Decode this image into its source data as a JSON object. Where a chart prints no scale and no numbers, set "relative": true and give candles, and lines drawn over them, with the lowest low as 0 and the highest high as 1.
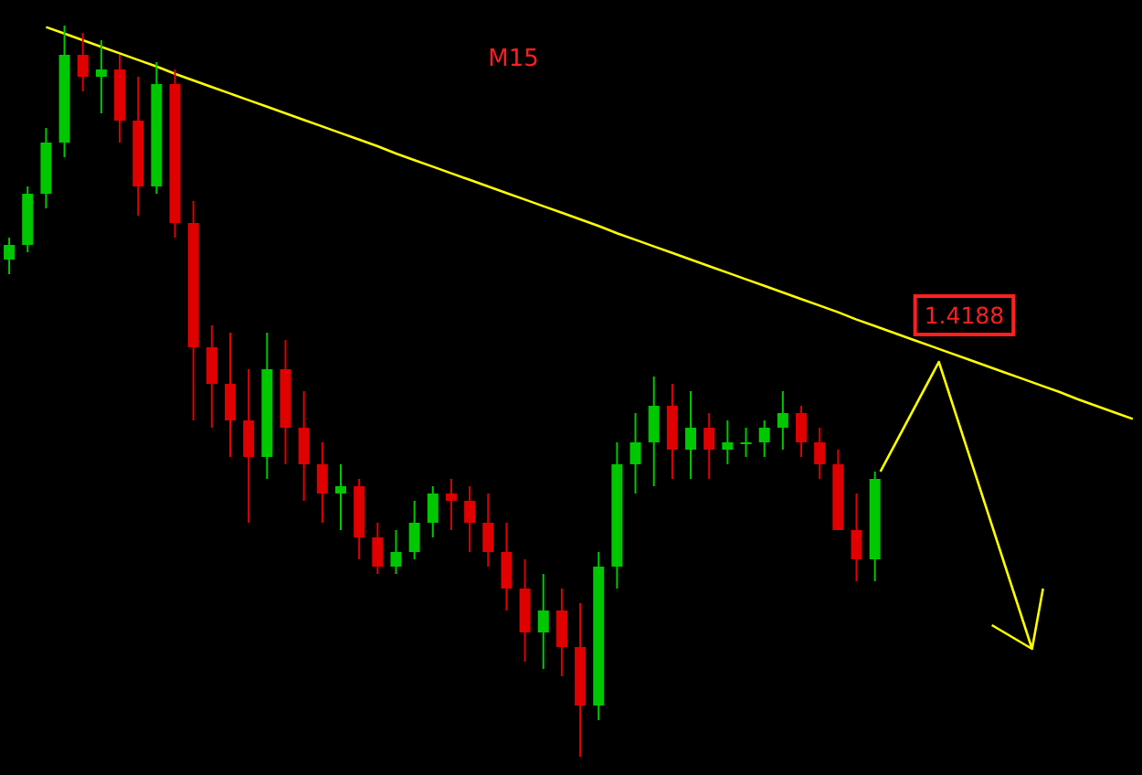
{
  "chart_data": {
    "type": "candlestick",
    "title": "M15",
    "relative": true,
    "categories": [
      null,
      null,
      null,
      null,
      null,
      null,
      null,
      null,
      null,
      null,
      null,
      null,
      null,
      null,
      null,
      null,
      null,
      null,
      null,
      null,
      null,
      null,
      null,
      null,
      null,
      null,
      null,
      null,
      null,
      null,
      null,
      null,
      null,
      null,
      null,
      null,
      null,
      null,
      null,
      null,
      null,
      null,
      null,
      null,
      null,
      null,
      null,
      null,
      null,
      null,
      null,
      null,
      null,
      null,
      null,
      null,
      null,
      null,
      null,
      null,
      null,
      null
    ],
    "ohlc": [
      [
        0.68,
        0.71,
        0.66,
        0.7
      ],
      [
        0.7,
        0.78,
        0.69,
        0.77
      ],
      [
        0.77,
        0.86,
        0.75,
        0.84
      ],
      [
        0.84,
        1.0,
        0.82,
        0.96
      ],
      [
        0.96,
        0.99,
        0.91,
        0.93
      ],
      [
        0.93,
        0.98,
        0.88,
        0.94
      ],
      [
        0.94,
        0.96,
        0.84,
        0.87
      ],
      [
        0.87,
        0.93,
        0.74,
        0.78
      ],
      [
        0.78,
        0.95,
        0.77,
        0.92
      ],
      [
        0.92,
        0.94,
        0.71,
        0.73
      ],
      [
        0.73,
        0.76,
        0.46,
        0.56
      ],
      [
        0.56,
        0.59,
        0.45,
        0.51
      ],
      [
        0.51,
        0.58,
        0.41,
        0.46
      ],
      [
        0.46,
        0.53,
        0.32,
        0.41
      ],
      [
        0.41,
        0.58,
        0.38,
        0.53
      ],
      [
        0.53,
        0.57,
        0.4,
        0.45
      ],
      [
        0.45,
        0.5,
        0.35,
        0.4
      ],
      [
        0.4,
        0.43,
        0.32,
        0.36
      ],
      [
        0.36,
        0.4,
        0.31,
        0.37
      ],
      [
        0.37,
        0.38,
        0.27,
        0.3
      ],
      [
        0.3,
        0.32,
        0.25,
        0.26
      ],
      [
        0.26,
        0.31,
        0.25,
        0.28
      ],
      [
        0.28,
        0.35,
        0.27,
        0.32
      ],
      [
        0.32,
        0.37,
        0.3,
        0.36
      ],
      [
        0.36,
        0.38,
        0.31,
        0.35
      ],
      [
        0.35,
        0.37,
        0.28,
        0.32
      ],
      [
        0.32,
        0.36,
        0.26,
        0.28
      ],
      [
        0.28,
        0.32,
        0.2,
        0.23
      ],
      [
        0.23,
        0.27,
        0.13,
        0.17
      ],
      [
        0.17,
        0.25,
        0.12,
        0.2
      ],
      [
        0.2,
        0.23,
        0.11,
        0.15
      ],
      [
        0.15,
        0.21,
        0,
        0.07
      ],
      [
        0.07,
        0.28,
        0.05,
        0.26
      ],
      [
        0.26,
        0.43,
        0.23,
        0.4
      ],
      [
        0.4,
        0.47,
        0.36,
        0.43
      ],
      [
        0.43,
        0.52,
        0.37,
        0.48
      ],
      [
        0.48,
        0.51,
        0.38,
        0.42
      ],
      [
        0.42,
        0.5,
        0.38,
        0.45
      ],
      [
        0.45,
        0.47,
        0.38,
        0.42
      ],
      [
        0.42,
        0.46,
        0.4,
        0.43
      ],
      [
        0.43,
        0.45,
        0.41,
        0.43
      ],
      [
        0.43,
        0.46,
        0.41,
        0.45
      ],
      [
        0.45,
        0.5,
        0.42,
        0.47
      ],
      [
        0.47,
        0.48,
        0.41,
        0.43
      ],
      [
        0.43,
        0.45,
        0.38,
        0.4
      ],
      [
        0.4,
        0.42,
        0.31,
        0.31
      ],
      [
        0.31,
        0.36,
        0.24,
        0.27
      ],
      [
        0.27,
        0.39,
        0.24,
        0.38
      ],
      null,
      null,
      null,
      null,
      null,
      null,
      null,
      null,
      null,
      null,
      null,
      null,
      null,
      null
    ],
    "series": [
      {
        "type": "line",
        "color": "#ffff00",
        "values": [
          null,
          null,
          0.998,
          0.989,
          0.98,
          0.971,
          0.962,
          0.953,
          0.944,
          0.934,
          0.925,
          0.916,
          0.907,
          0.898,
          0.889,
          0.88,
          0.871,
          0.862,
          0.853,
          0.844,
          0.835,
          0.825,
          0.816,
          0.807,
          0.798,
          0.789,
          0.78,
          0.771,
          0.762,
          0.753,
          0.744,
          0.735,
          0.726,
          0.716,
          0.707,
          0.698,
          0.689,
          0.68,
          0.671,
          0.662,
          0.653,
          0.644,
          0.635,
          0.626,
          0.617,
          0.608,
          0.598,
          0.589,
          0.58,
          0.571,
          0.562,
          0.553,
          0.544,
          0.535,
          0.526,
          0.517,
          0.508,
          0.499,
          0.489,
          0.48,
          0.471,
          0.462
        ]
      }
    ],
    "annotations": [
      {
        "text": "1.4188",
        "y": 0.54
      }
    ]
  }
}
